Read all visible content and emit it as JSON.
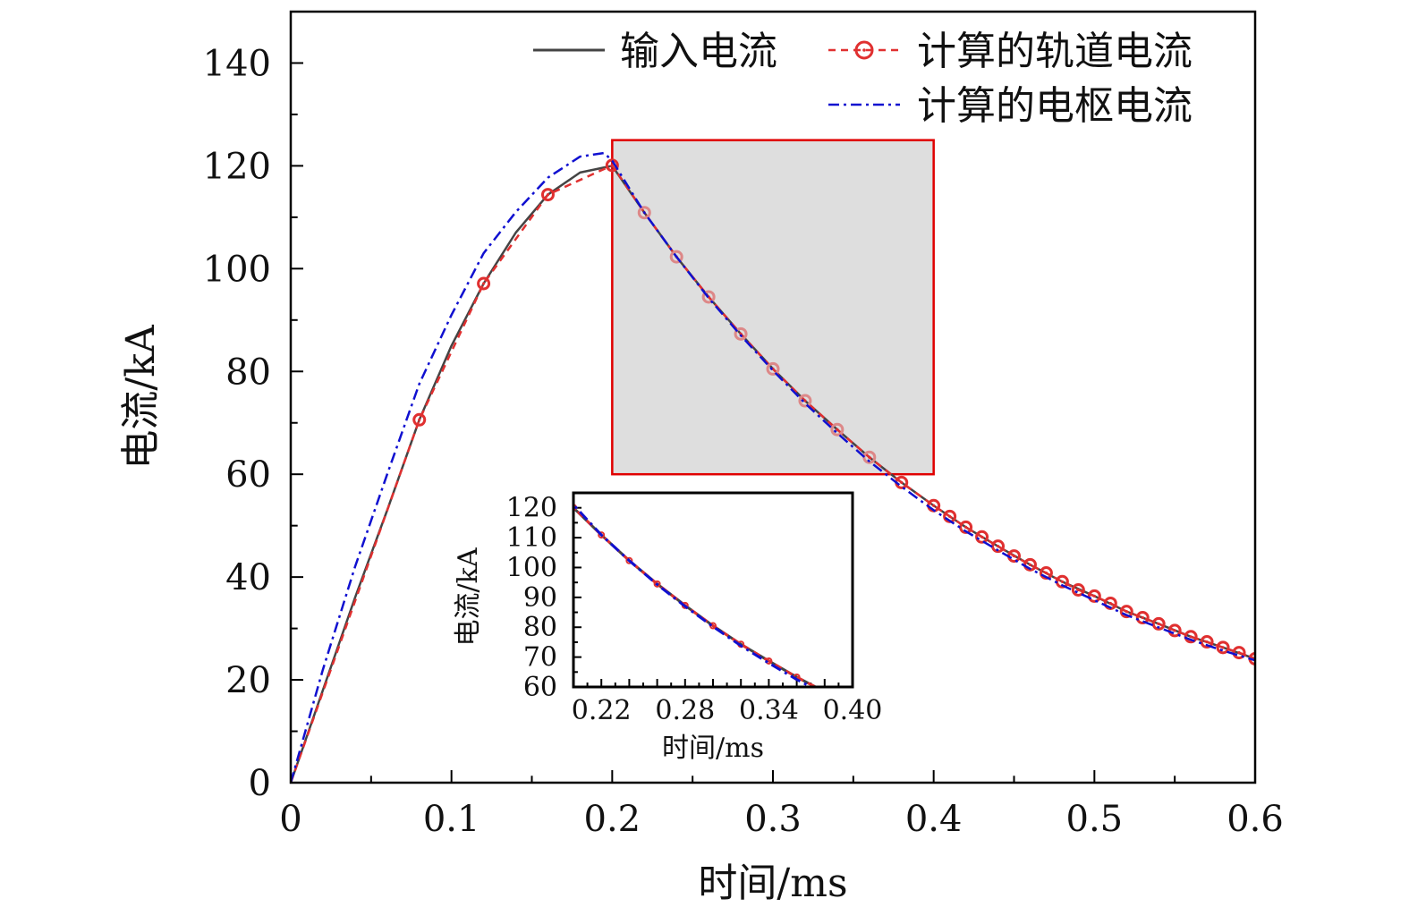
{
  "chart_data": {
    "type": "line",
    "xlabel": "时间/ms",
    "ylabel": "电流/kA",
    "xlim": [
      0,
      0.6
    ],
    "ylim": [
      0,
      150
    ],
    "xticks": [
      "0",
      "0.1",
      "0.2",
      "0.3",
      "0.4",
      "0.5",
      "0.6"
    ],
    "xtick_values": [
      0,
      0.1,
      0.2,
      0.3,
      0.4,
      0.5,
      0.6
    ],
    "yticks": [
      "0",
      "20",
      "40",
      "60",
      "80",
      "100",
      "120",
      "140"
    ],
    "ytick_values": [
      0,
      20,
      40,
      60,
      80,
      100,
      120,
      140
    ],
    "grid": false,
    "legend_position": "top-right",
    "series": [
      {
        "name": "输入电流",
        "color": "#444444",
        "style": "solid",
        "x": [
          0,
          0.02,
          0.04,
          0.06,
          0.08,
          0.1,
          0.12,
          0.14,
          0.16,
          0.18,
          0.2,
          0.22,
          0.24,
          0.26,
          0.28,
          0.3,
          0.32,
          0.34,
          0.36,
          0.38,
          0.4,
          0.42,
          0.44,
          0.46,
          0.48,
          0.5,
          0.52,
          0.54,
          0.56,
          0.58,
          0.6
        ],
        "y": [
          0,
          18,
          36,
          53,
          70.6,
          85,
          97.1,
          107,
          114.4,
          118.7,
          120,
          110.9,
          102.3,
          94.5,
          87.3,
          80.5,
          74.3,
          68.7,
          63.3,
          58.4,
          53.9,
          49.7,
          46.0,
          42.4,
          39.1,
          36.3,
          33.3,
          30.9,
          28.4,
          26.3,
          24.1
        ]
      },
      {
        "name": "计算的轨道电流",
        "color": "#e03030",
        "style": "dashed-circle",
        "x": [
          0,
          0.08,
          0.12,
          0.16,
          0.2,
          0.22,
          0.24,
          0.26,
          0.28,
          0.3,
          0.32,
          0.34,
          0.36,
          0.38,
          0.4,
          0.41,
          0.42,
          0.43,
          0.44,
          0.45,
          0.46,
          0.47,
          0.48,
          0.49,
          0.5,
          0.51,
          0.52,
          0.53,
          0.54,
          0.55,
          0.56,
          0.57,
          0.58,
          0.59,
          0.6
        ],
        "y": [
          0,
          70.6,
          97.1,
          114.4,
          120.1,
          110.9,
          102.3,
          94.5,
          87.3,
          80.5,
          74.3,
          68.7,
          63.3,
          58.4,
          53.9,
          51.8,
          49.7,
          47.8,
          46.0,
          44.1,
          42.4,
          40.8,
          39.1,
          37.5,
          36.3,
          34.9,
          33.3,
          32.1,
          30.9,
          29.6,
          28.4,
          27.4,
          26.3,
          25.3,
          24.1
        ]
      },
      {
        "name": "计算的电枢电流",
        "color": "#1010d0",
        "style": "dash-dot",
        "x": [
          0,
          0.02,
          0.04,
          0.06,
          0.08,
          0.1,
          0.12,
          0.14,
          0.16,
          0.18,
          0.195,
          0.2,
          0.22,
          0.24,
          0.26,
          0.28,
          0.3,
          0.32,
          0.34,
          0.36,
          0.38,
          0.4,
          0.42,
          0.44,
          0.46,
          0.48,
          0.5,
          0.52,
          0.54,
          0.56,
          0.58,
          0.6
        ],
        "y": [
          0,
          22,
          42,
          60,
          77.6,
          91,
          103,
          111,
          117.7,
          121.8,
          122.5,
          121,
          110.9,
          102.3,
          94.3,
          87.0,
          80.2,
          73.8,
          68.0,
          62.5,
          57.6,
          53.0,
          48.9,
          45.2,
          41.6,
          38.4,
          35.5,
          32.6,
          30.2,
          27.8,
          25.7,
          23.8
        ]
      }
    ],
    "zoom_region": {
      "x": [
        0.2,
        0.4
      ],
      "y": [
        60,
        125
      ]
    },
    "inset": {
      "xlabel": "时间/ms",
      "ylabel": "电流/kA",
      "xlim": [
        0.2,
        0.4
      ],
      "ylim": [
        60,
        125
      ],
      "xticks": [
        "0.22",
        "0.28",
        "0.34",
        "0.40"
      ],
      "xtick_values": [
        0.22,
        0.28,
        0.34,
        0.4
      ],
      "yticks": [
        "60",
        "70",
        "80",
        "90",
        "100",
        "110",
        "120"
      ],
      "ytick_values": [
        60,
        70,
        80,
        90,
        100,
        110,
        120
      ]
    }
  }
}
